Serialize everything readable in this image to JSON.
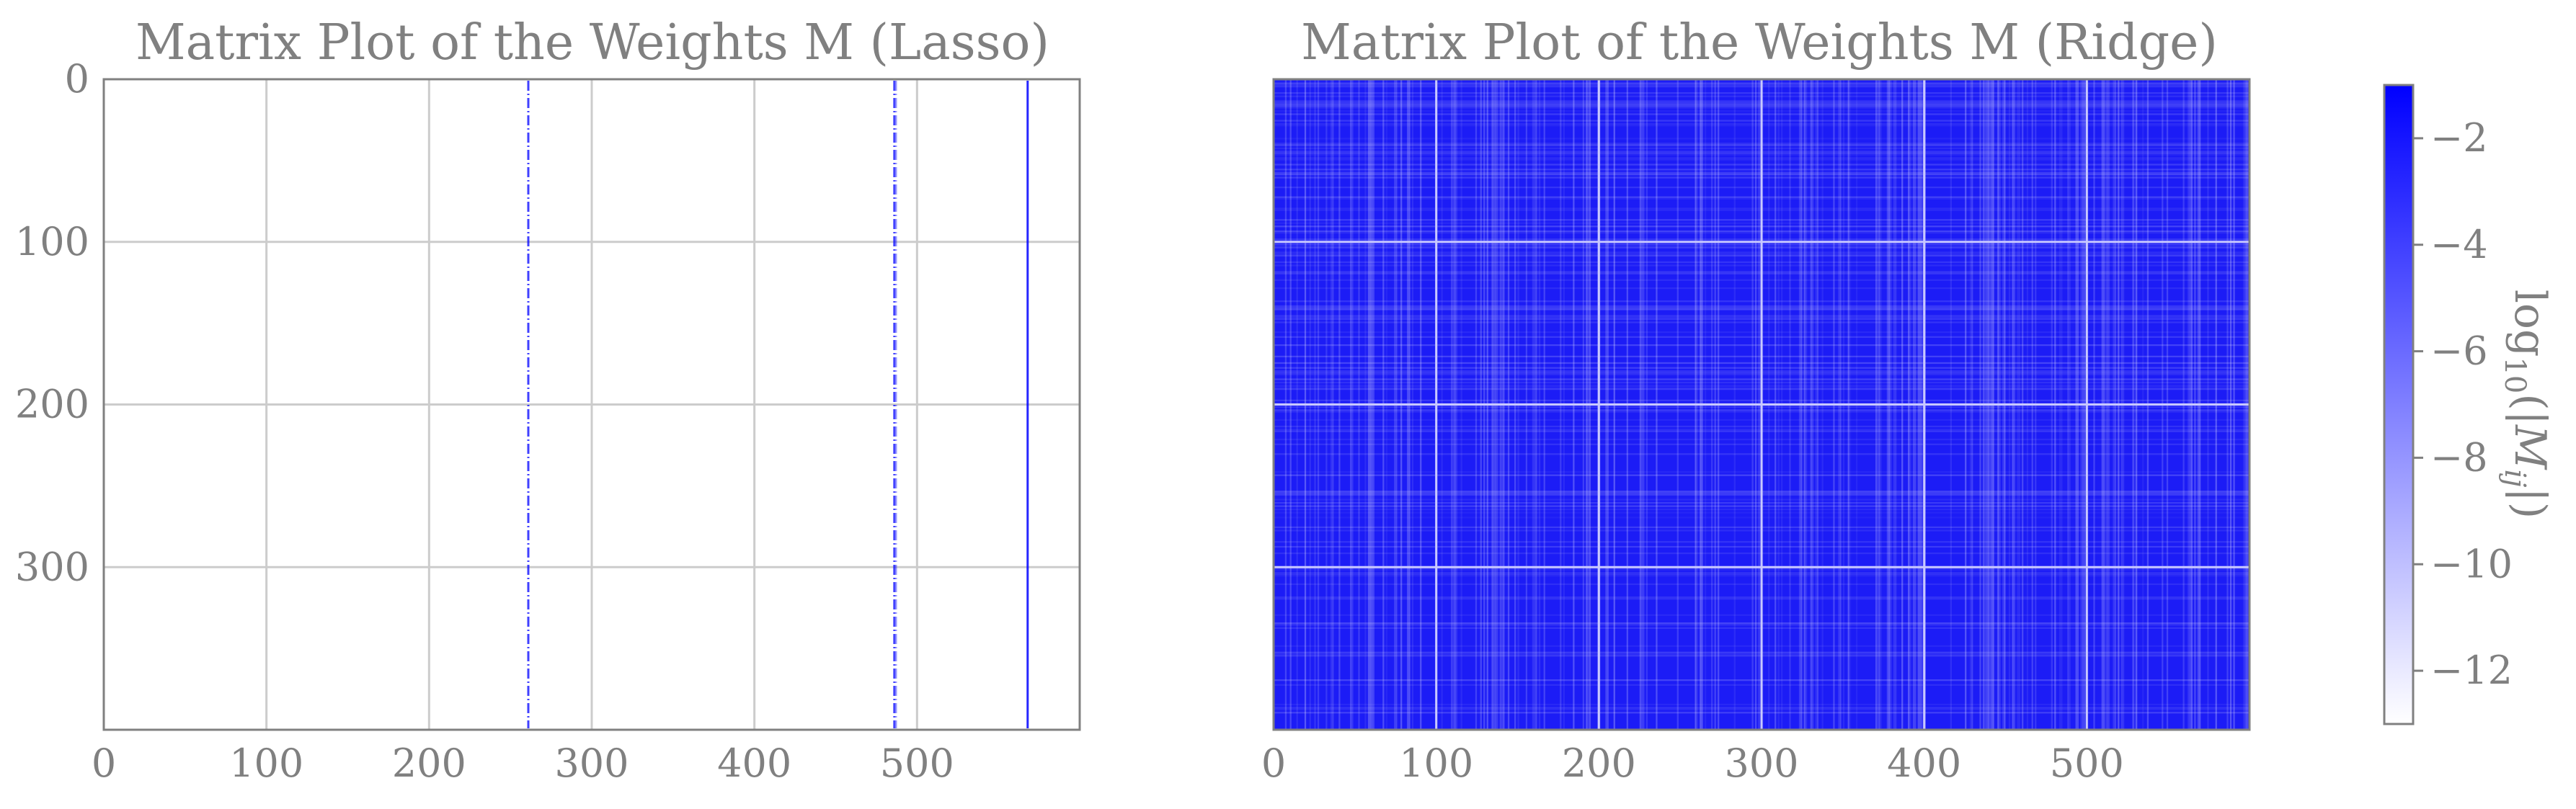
{
  "figure": {
    "colorbar": {
      "label": "log10(|Mij|)",
      "label_parts": {
        "base": "log",
        "sub": "10",
        "open": "(|",
        "var": "M",
        "var_sub": "ij",
        "close": "|)"
      },
      "range": [
        -13,
        -1
      ],
      "ticks": [
        -2,
        -4,
        -6,
        -8,
        -10,
        -12
      ],
      "tick_labels": [
        "−2",
        "−4",
        "−6",
        "−8",
        "−10",
        "−12"
      ],
      "colormap": {
        "low": "#ffffff",
        "high": "#0000ff"
      }
    }
  },
  "chart_data": [
    {
      "type": "heatmap",
      "title": "Matrix Plot of the Weights M (Lasso)",
      "xlabel": "",
      "ylabel": "",
      "xlim": [
        0,
        600
      ],
      "ylim": [
        400,
        0
      ],
      "x_ticks": [
        0,
        100,
        200,
        300,
        400,
        500
      ],
      "x_tick_labels": [
        "0",
        "100",
        "200",
        "300",
        "400",
        "500"
      ],
      "y_ticks": [
        0,
        100,
        200,
        300
      ],
      "y_tick_labels": [
        "0",
        "100",
        "200",
        "300"
      ],
      "grid": true,
      "description_of_values": "Almost all weights are zero (white); only a few columns carry nonzero weights",
      "nonzero_columns": [
        {
          "column": 261,
          "pattern": "dashed",
          "intensity": 0.75
        },
        {
          "column": 486,
          "pattern": "dashed",
          "intensity": 0.7
        },
        {
          "column": 487,
          "pattern": "dashed",
          "intensity": 0.4
        },
        {
          "column": 568,
          "pattern": "solid",
          "intensity": 0.85
        }
      ]
    },
    {
      "type": "heatmap",
      "title": "Matrix Plot of the Weights M (Ridge)",
      "xlabel": "",
      "ylabel": "",
      "xlim": [
        0,
        600
      ],
      "ylim": [
        400,
        0
      ],
      "x_ticks": [
        0,
        100,
        200,
        300,
        400,
        500
      ],
      "x_tick_labels": [
        "0",
        "100",
        "200",
        "300",
        "400",
        "500"
      ],
      "y_ticks": [
        0,
        100,
        200,
        300
      ],
      "grid": true,
      "description_of_values": "Dense matrix: nearly every weight is nonzero with log10(|Mij|) mostly between -1 and -3 (strong blue), with fine lighter streaks"
    }
  ]
}
